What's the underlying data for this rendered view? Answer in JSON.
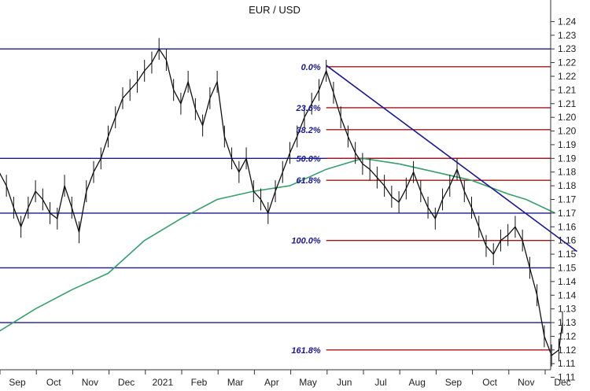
{
  "chart_data": {
    "type": "line",
    "title": "EUR / USD",
    "xlabel": "",
    "ylabel": "",
    "ylim": [
      1.105,
      1.245
    ],
    "y_ticks": [
      1.11,
      1.115,
      1.12,
      1.125,
      1.13,
      1.135,
      1.14,
      1.145,
      1.15,
      1.155,
      1.16,
      1.165,
      1.17,
      1.175,
      1.18,
      1.185,
      1.19,
      1.195,
      1.2,
      1.205,
      1.21,
      1.215,
      1.22,
      1.225,
      1.23,
      1.235,
      1.24
    ],
    "y_tick_labels": [
      "1.11",
      "1.11",
      "1.12",
      "1.12",
      "1.13",
      "1.13",
      "1.14",
      "1.14",
      "1.15",
      "1.15",
      "1.16",
      "1.16",
      "1.17",
      "1.17",
      "1.18",
      "1.18",
      "1.19",
      "1.19",
      "1.20",
      "1.20",
      "1.21",
      "1.21",
      "1.22",
      "1.22",
      "1.23",
      "1.23",
      "1.24"
    ],
    "x_ticks": [
      {
        "label": "Sep",
        "month": 0
      },
      {
        "label": "Oct",
        "month": 1
      },
      {
        "label": "Nov",
        "month": 2
      },
      {
        "label": "Dec",
        "month": 3
      },
      {
        "label": "2021",
        "month": 4
      },
      {
        "label": "Feb",
        "month": 5
      },
      {
        "label": "Mar",
        "month": 6
      },
      {
        "label": "Apr",
        "month": 7
      },
      {
        "label": "May",
        "month": 8
      },
      {
        "label": "Jun",
        "month": 9
      },
      {
        "label": "Jul",
        "month": 10
      },
      {
        "label": "Aug",
        "month": 11
      },
      {
        "label": "Sep",
        "month": 12
      },
      {
        "label": "Oct",
        "month": 13
      },
      {
        "label": "Nov",
        "month": 14
      },
      {
        "label": "Dec",
        "month": 15
      }
    ],
    "price_series": {
      "months": [
        -0.5,
        -0.3,
        -0.1,
        0.1,
        0.3,
        0.5,
        0.7,
        0.9,
        1.1,
        1.3,
        1.5,
        1.7,
        1.9,
        2.1,
        2.3,
        2.5,
        2.7,
        2.9,
        3.1,
        3.3,
        3.5,
        3.7,
        3.9,
        4.1,
        4.3,
        4.5,
        4.7,
        4.9,
        5.1,
        5.3,
        5.5,
        5.7,
        5.9,
        6.1,
        6.3,
        6.5,
        6.7,
        6.9,
        7.1,
        7.3,
        7.5,
        7.7,
        7.9,
        8.1,
        8.3,
        8.5,
        8.7,
        8.9,
        9.1,
        9.3,
        9.5,
        9.7,
        9.9,
        10.1,
        10.3,
        10.5,
        10.7,
        10.9,
        11.1,
        11.3,
        11.5,
        11.7,
        11.9,
        12.1,
        12.3,
        12.5,
        12.7,
        12.9,
        13.1,
        13.3,
        13.5,
        13.7,
        13.9,
        14.1,
        14.3,
        14.5,
        14.7,
        14.9,
        15.0
      ],
      "values": [
        1.185,
        1.18,
        1.172,
        1.165,
        1.172,
        1.178,
        1.175,
        1.17,
        1.168,
        1.18,
        1.172,
        1.163,
        1.178,
        1.185,
        1.19,
        1.198,
        1.205,
        1.212,
        1.215,
        1.218,
        1.222,
        1.225,
        1.23,
        1.226,
        1.215,
        1.21,
        1.218,
        1.208,
        1.202,
        1.212,
        1.218,
        1.198,
        1.19,
        1.185,
        1.19,
        1.178,
        1.175,
        1.17,
        1.178,
        1.185,
        1.192,
        1.198,
        1.205,
        1.21,
        1.215,
        1.222,
        1.214,
        1.205,
        1.198,
        1.192,
        1.188,
        1.186,
        1.183,
        1.18,
        1.176,
        1.174,
        1.179,
        1.185,
        1.178,
        1.172,
        1.168,
        1.175,
        1.18,
        1.186,
        1.178,
        1.172,
        1.165,
        1.158,
        1.155,
        1.16,
        1.162,
        1.165,
        1.16,
        1.15,
        1.14,
        1.125,
        1.118,
        1.12,
        1.13
      ]
    },
    "moving_average": {
      "months": [
        -0.6,
        0.5,
        1.5,
        2.5,
        3.5,
        4.5,
        5.5,
        6.5,
        7.5,
        8.5,
        9.5,
        10.5,
        11.5,
        12.5,
        13.5,
        14.0,
        14.8
      ],
      "values": [
        1.126,
        1.135,
        1.142,
        1.148,
        1.16,
        1.168,
        1.175,
        1.178,
        1.18,
        1.186,
        1.19,
        1.188,
        1.185,
        1.182,
        1.177,
        1.175,
        1.17
      ]
    },
    "blue_horizontal_lines": [
      1.23,
      1.19,
      1.17,
      1.15,
      1.13
    ],
    "trendline": {
      "start": {
        "month": 8.5,
        "value": 1.224
      },
      "end": {
        "month": 15.4,
        "value": 1.156
      }
    },
    "fib_levels": [
      {
        "label": "0.0%",
        "value": 1.2235
      },
      {
        "label": "23.6%",
        "value": 1.2085
      },
      {
        "label": "38.2%",
        "value": 1.2005
      },
      {
        "label": "50.0%",
        "value": 1.19
      },
      {
        "label": "61.8%",
        "value": 1.182
      },
      {
        "label": "100.0%",
        "value": 1.16
      },
      {
        "label": "161.8%",
        "value": 1.12
      }
    ],
    "fib_line_start_month": 8.5,
    "colors": {
      "blue_line": "#1a1a8c",
      "fib_line": "#a01818",
      "price": "#111111",
      "ma": "#3a9e6e",
      "trend": "#1a1a8c"
    },
    "legend": "none",
    "grid": false
  }
}
